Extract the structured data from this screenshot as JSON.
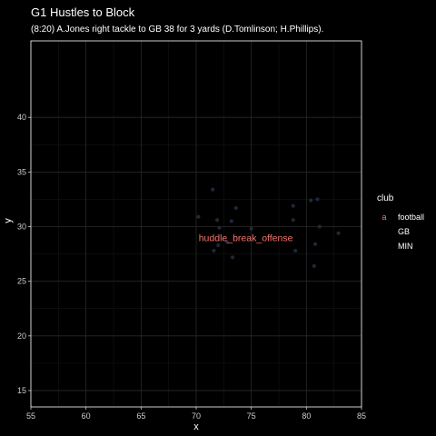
{
  "chart_data": {
    "type": "scatter",
    "title": "G1 Hustles to Block",
    "subtitle": "(8:20) A.Jones right tackle to GB 38 for 3 yards (D.Tomlinson; H.Phillips).",
    "xlabel": "x",
    "ylabel": "y",
    "xlim": [
      55,
      85
    ],
    "ylim": [
      13.5,
      47
    ],
    "xticks": [
      55,
      60,
      65,
      70,
      75,
      80,
      85
    ],
    "yticks": [
      15,
      20,
      25,
      30,
      35,
      40
    ],
    "grid": true,
    "legend": {
      "title": "club",
      "placement": "right",
      "items": [
        {
          "key": "a",
          "label": "football",
          "color": "#f8766d"
        },
        {
          "key": "",
          "label": "GB",
          "color": "#000000"
        },
        {
          "key": "",
          "label": "MIN",
          "color": "#000000"
        }
      ]
    },
    "annotation": {
      "text": "huddle_break_offense",
      "x": 74.5,
      "y": 29,
      "color": "#f8766d"
    },
    "series": [
      {
        "name": "GB",
        "color": "#1e2a3a",
        "points": [
          [
            70.2,
            30.9
          ],
          [
            71.5,
            33.4
          ],
          [
            71.9,
            30.6
          ],
          [
            72.1,
            29.9
          ],
          [
            72.0,
            28.3
          ],
          [
            71.6,
            27.8
          ],
          [
            72.8,
            28.6
          ],
          [
            73.2,
            30.5
          ],
          [
            73.6,
            31.7
          ],
          [
            73.3,
            27.2
          ],
          [
            75.0,
            29.8
          ]
        ]
      },
      {
        "name": "MIN",
        "color": "#1e2a3a",
        "points": [
          [
            78.8,
            31.9
          ],
          [
            78.8,
            30.6
          ],
          [
            79.0,
            27.8
          ],
          [
            80.4,
            32.4
          ],
          [
            81.0,
            32.5
          ],
          [
            81.2,
            30.0
          ],
          [
            80.8,
            28.4
          ],
          [
            80.7,
            26.4
          ],
          [
            82.9,
            29.4
          ]
        ]
      }
    ]
  },
  "colors": {
    "background": "#000000",
    "panel": "#000000",
    "grid_major": "#2a2a2a",
    "grid_minor": "#141414",
    "border": "#ffffff"
  }
}
